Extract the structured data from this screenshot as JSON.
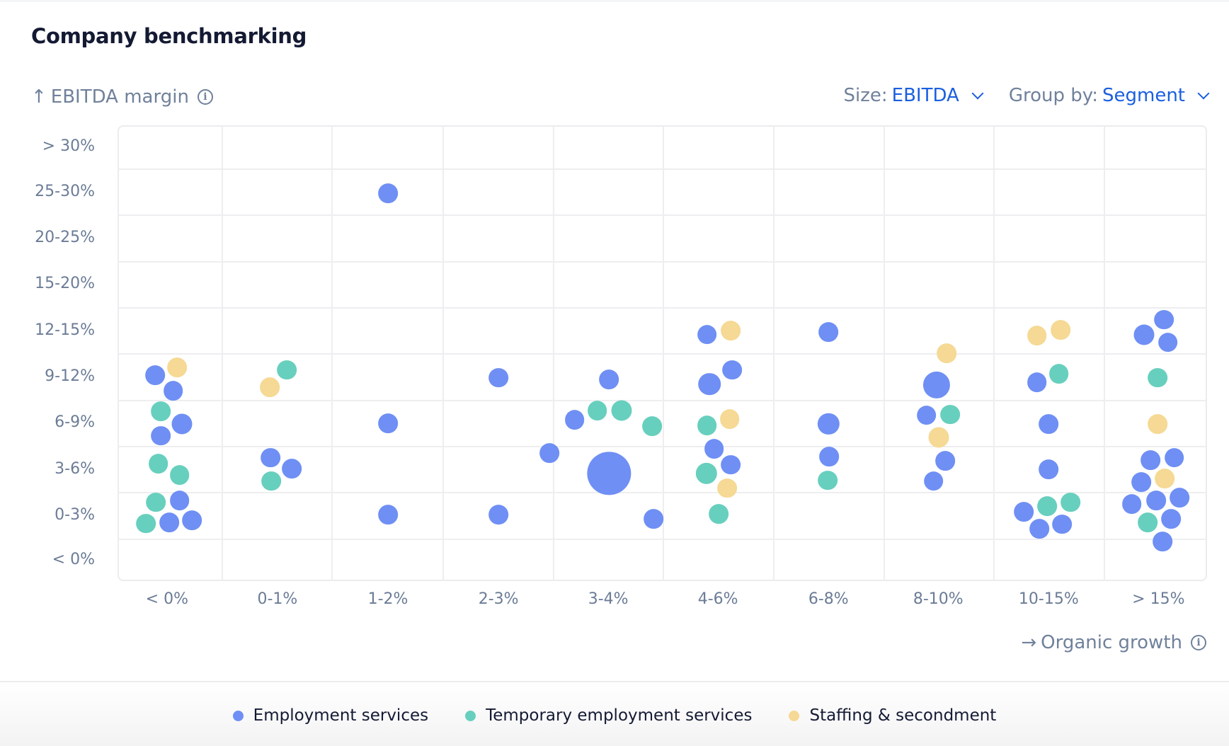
{
  "title": "Company benchmarking",
  "controls": {
    "size_label": "Size:",
    "size_value": "EBITDA",
    "group_label": "Group by:",
    "group_value": "Segment"
  },
  "icons": {
    "y_arrow": "↑",
    "x_arrow": "→",
    "info": "i"
  },
  "colors": {
    "Employment services": "#6f8ff4",
    "Temporary employment services": "#67cfbd",
    "Staffing & secondment": "#f5d994",
    "accent": "#1a5fe0"
  },
  "chart_data": {
    "type": "scatter",
    "subtype": "binned bubble chart",
    "title": "Company benchmarking",
    "xlabel": "Organic growth",
    "ylabel": "EBITDA margin",
    "size_by": "EBITDA",
    "group_by": "Segment",
    "x_categories": [
      "< 0%",
      "0-1%",
      "1-2%",
      "2-3%",
      "3-4%",
      "4-6%",
      "6-8%",
      "8-10%",
      "10-15%",
      "> 15%"
    ],
    "y_categories": [
      "> 30%",
      "25-30%",
      "20-25%",
      "15-20%",
      "12-15%",
      "9-12%",
      "6-9%",
      "3-6%",
      "0-3%",
      "< 0%"
    ],
    "legend": [
      "Employment services",
      "Temporary employment services",
      "Staffing & secondment"
    ],
    "legend_position": "bottom",
    "grid": true,
    "points": [
      {
        "x": "< 0%",
        "y": "9-12%",
        "segment": "Staffing & secondment",
        "size": 1
      },
      {
        "x": "< 0%",
        "y": "9-12%",
        "segment": "Employment services",
        "size": 1
      },
      {
        "x": "< 0%",
        "y": "9-12%",
        "segment": "Employment services",
        "size": 1
      },
      {
        "x": "< 0%",
        "y": "6-9%",
        "segment": "Temporary employment services",
        "size": 1
      },
      {
        "x": "< 0%",
        "y": "6-9%",
        "segment": "Employment services",
        "size": 1.1
      },
      {
        "x": "< 0%",
        "y": "6-9%",
        "segment": "Employment services",
        "size": 1
      },
      {
        "x": "< 0%",
        "y": "3-6%",
        "segment": "Temporary employment services",
        "size": 1
      },
      {
        "x": "< 0%",
        "y": "3-6%",
        "segment": "Temporary employment services",
        "size": 1
      },
      {
        "x": "< 0%",
        "y": "0-3%",
        "segment": "Temporary employment services",
        "size": 1
      },
      {
        "x": "< 0%",
        "y": "0-3%",
        "segment": "Employment services",
        "size": 1
      },
      {
        "x": "< 0%",
        "y": "0-3%",
        "segment": "Temporary employment services",
        "size": 1
      },
      {
        "x": "< 0%",
        "y": "0-3%",
        "segment": "Employment services",
        "size": 1
      },
      {
        "x": "< 0%",
        "y": "0-3%",
        "segment": "Employment services",
        "size": 1
      },
      {
        "x": "0-1%",
        "y": "9-12%",
        "segment": "Temporary employment services",
        "size": 1
      },
      {
        "x": "0-1%",
        "y": "9-12%",
        "segment": "Staffing & secondment",
        "size": 1
      },
      {
        "x": "0-1%",
        "y": "3-6%",
        "segment": "Employment services",
        "size": 1
      },
      {
        "x": "0-1%",
        "y": "3-6%",
        "segment": "Employment services",
        "size": 1
      },
      {
        "x": "0-1%",
        "y": "3-6%",
        "segment": "Temporary employment services",
        "size": 1
      },
      {
        "x": "1-2%",
        "y": "25-30%",
        "segment": "Employment services",
        "size": 1
      },
      {
        "x": "1-2%",
        "y": "6-9%",
        "segment": "Employment services",
        "size": 1
      },
      {
        "x": "1-2%",
        "y": "0-3%",
        "segment": "Employment services",
        "size": 1
      },
      {
        "x": "2-3%",
        "y": "9-12%",
        "segment": "Employment services",
        "size": 1
      },
      {
        "x": "2-3%",
        "y": "0-3%",
        "segment": "Employment services",
        "size": 1
      },
      {
        "x": "3-4%",
        "y": "9-12%",
        "segment": "Employment services",
        "size": 1
      },
      {
        "x": "3-4%",
        "y": "6-9%",
        "segment": "Employment services",
        "size": 1
      },
      {
        "x": "3-4%",
        "y": "6-9%",
        "segment": "Temporary employment services",
        "size": 1
      },
      {
        "x": "3-4%",
        "y": "6-9%",
        "segment": "Temporary employment services",
        "size": 1.1
      },
      {
        "x": "3-4%",
        "y": "6-9%",
        "segment": "Temporary employment services",
        "size": 1
      },
      {
        "x": "3-4%",
        "y": "3-6%",
        "segment": "Employment services",
        "size": 1
      },
      {
        "x": "3-4%",
        "y": "3-6%",
        "segment": "Employment services",
        "size": 4.9
      },
      {
        "x": "3-4%",
        "y": "0-3%",
        "segment": "Employment services",
        "size": 1
      },
      {
        "x": "4-6%",
        "y": "12-15%",
        "segment": "Employment services",
        "size": 1
      },
      {
        "x": "4-6%",
        "y": "12-15%",
        "segment": "Staffing & secondment",
        "size": 1
      },
      {
        "x": "4-6%",
        "y": "9-12%",
        "segment": "Employment services",
        "size": 1
      },
      {
        "x": "4-6%",
        "y": "9-12%",
        "segment": "Employment services",
        "size": 1.3
      },
      {
        "x": "4-6%",
        "y": "6-9%",
        "segment": "Staffing & secondment",
        "size": 1
      },
      {
        "x": "4-6%",
        "y": "6-9%",
        "segment": "Temporary employment services",
        "size": 1
      },
      {
        "x": "4-6%",
        "y": "3-6%",
        "segment": "Employment services",
        "size": 1
      },
      {
        "x": "4-6%",
        "y": "3-6%",
        "segment": "Employment services",
        "size": 1
      },
      {
        "x": "4-6%",
        "y": "3-6%",
        "segment": "Temporary employment services",
        "size": 1.2
      },
      {
        "x": "4-6%",
        "y": "3-6%",
        "segment": "Staffing & secondment",
        "size": 1
      },
      {
        "x": "4-6%",
        "y": "0-3%",
        "segment": "Temporary employment services",
        "size": 1
      },
      {
        "x": "6-8%",
        "y": "12-15%",
        "segment": "Employment services",
        "size": 1
      },
      {
        "x": "6-8%",
        "y": "6-9%",
        "segment": "Employment services",
        "size": 1.2
      },
      {
        "x": "6-8%",
        "y": "3-6%",
        "segment": "Employment services",
        "size": 1
      },
      {
        "x": "6-8%",
        "y": "3-6%",
        "segment": "Temporary employment services",
        "size": 1
      },
      {
        "x": "8-10%",
        "y": "9-12%",
        "segment": "Staffing & secondment",
        "size": 1
      },
      {
        "x": "8-10%",
        "y": "9-12%",
        "segment": "Employment services",
        "size": 1.9
      },
      {
        "x": "8-10%",
        "y": "6-9%",
        "segment": "Employment services",
        "size": 1
      },
      {
        "x": "8-10%",
        "y": "6-9%",
        "segment": "Temporary employment services",
        "size": 1
      },
      {
        "x": "8-10%",
        "y": "6-9%",
        "segment": "Staffing & secondment",
        "size": 1.1
      },
      {
        "x": "8-10%",
        "y": "3-6%",
        "segment": "Employment services",
        "size": 1
      },
      {
        "x": "8-10%",
        "y": "3-6%",
        "segment": "Employment services",
        "size": 1
      },
      {
        "x": "10-15%",
        "y": "12-15%",
        "segment": "Staffing & secondment",
        "size": 1
      },
      {
        "x": "10-15%",
        "y": "12-15%",
        "segment": "Staffing & secondment",
        "size": 1
      },
      {
        "x": "10-15%",
        "y": "9-12%",
        "segment": "Employment services",
        "size": 1
      },
      {
        "x": "10-15%",
        "y": "9-12%",
        "segment": "Temporary employment services",
        "size": 1
      },
      {
        "x": "10-15%",
        "y": "6-9%",
        "segment": "Employment services",
        "size": 1
      },
      {
        "x": "10-15%",
        "y": "3-6%",
        "segment": "Employment services",
        "size": 1
      },
      {
        "x": "10-15%",
        "y": "0-3%",
        "segment": "Employment services",
        "size": 1
      },
      {
        "x": "10-15%",
        "y": "0-3%",
        "segment": "Temporary employment services",
        "size": 1
      },
      {
        "x": "10-15%",
        "y": "0-3%",
        "segment": "Temporary employment services",
        "size": 1
      },
      {
        "x": "10-15%",
        "y": "0-3%",
        "segment": "Employment services",
        "size": 1
      },
      {
        "x": "10-15%",
        "y": "0-3%",
        "segment": "Employment services",
        "size": 1
      },
      {
        "x": "> 15%",
        "y": "12-15%",
        "segment": "Employment services",
        "size": 1
      },
      {
        "x": "> 15%",
        "y": "12-15%",
        "segment": "Employment services",
        "size": 1.1
      },
      {
        "x": "> 15%",
        "y": "12-15%",
        "segment": "Employment services",
        "size": 1
      },
      {
        "x": "> 15%",
        "y": "9-12%",
        "segment": "Temporary employment services",
        "size": 1
      },
      {
        "x": "> 15%",
        "y": "6-9%",
        "segment": "Staffing & secondment",
        "size": 1
      },
      {
        "x": "> 15%",
        "y": "3-6%",
        "segment": "Employment services",
        "size": 1
      },
      {
        "x": "> 15%",
        "y": "3-6%",
        "segment": "Employment services",
        "size": 1
      },
      {
        "x": "> 15%",
        "y": "3-6%",
        "segment": "Staffing & secondment",
        "size": 1
      },
      {
        "x": "> 15%",
        "y": "3-6%",
        "segment": "Employment services",
        "size": 1
      },
      {
        "x": "> 15%",
        "y": "0-3%",
        "segment": "Employment services",
        "size": 1
      },
      {
        "x": "> 15%",
        "y": "0-3%",
        "segment": "Employment services",
        "size": 1
      },
      {
        "x": "> 15%",
        "y": "0-3%",
        "segment": "Employment services",
        "size": 1
      },
      {
        "x": "> 15%",
        "y": "0-3%",
        "segment": "Temporary employment services",
        "size": 1
      },
      {
        "x": "> 15%",
        "y": "0-3%",
        "segment": "Employment services",
        "size": 1
      },
      {
        "x": "> 15%",
        "y": "0-3%",
        "segment": "Employment services",
        "size": 1
      }
    ]
  }
}
